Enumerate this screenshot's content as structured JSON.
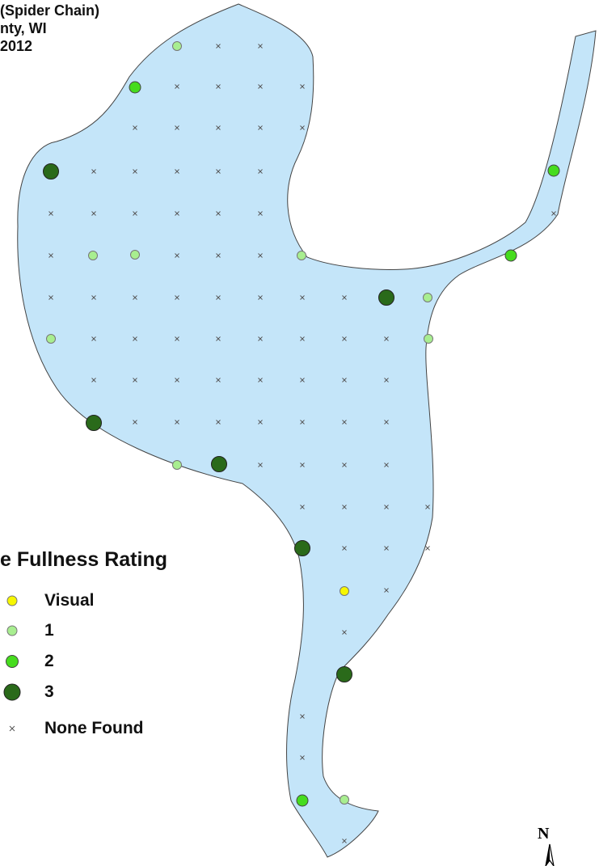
{
  "title": {
    "line1": "(Spider Chain)",
    "line2": "nty, WI",
    "line3": "2012"
  },
  "legend": {
    "title": "e Fullness Rating",
    "items": [
      {
        "key": "visual",
        "label": "Visual",
        "color": "#f7f700"
      },
      {
        "key": "r1",
        "label": "1",
        "color": "#a8ee90"
      },
      {
        "key": "r2",
        "label": "2",
        "color": "#46dc1e"
      },
      {
        "key": "r3",
        "label": "3",
        "color": "#2a6a1a"
      },
      {
        "key": "none",
        "label": "None Found",
        "color": "#555555"
      }
    ]
  },
  "north_arrow": {
    "label": "N"
  },
  "colors": {
    "water": "#c4e5f9",
    "shoreline": "#444444"
  }
}
